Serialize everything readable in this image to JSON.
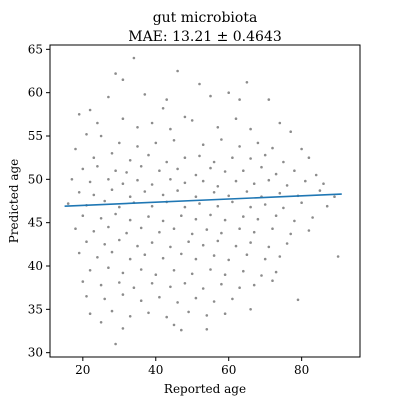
{
  "chart_data": {
    "type": "scatter",
    "title": "gut microbiota",
    "subtitle": "MAE: 13.21 ± 0.4643",
    "xlabel": "Reported age",
    "ylabel": "Predicted age",
    "xlim": [
      11,
      96
    ],
    "ylim": [
      29.5,
      65.5
    ],
    "xticks": [
      20,
      40,
      60,
      80
    ],
    "yticks": [
      30,
      35,
      40,
      45,
      50,
      55,
      60,
      65
    ],
    "grid": false,
    "legend": "none",
    "point_color": "#8c8c8c",
    "line_color": "#1f77b4",
    "trend_line": {
      "x": [
        15,
        91
      ],
      "y": [
        46.9,
        48.3
      ]
    },
    "points": [
      [
        34,
        64
      ],
      [
        29,
        62.2
      ],
      [
        46,
        62.5
      ],
      [
        31,
        61.5
      ],
      [
        52,
        61
      ],
      [
        65,
        61.2
      ],
      [
        22,
        58
      ],
      [
        27,
        59.5
      ],
      [
        37,
        59.8
      ],
      [
        42,
        58.2
      ],
      [
        55,
        59.6
      ],
      [
        60,
        60
      ],
      [
        63,
        59.2
      ],
      [
        71,
        59.2
      ],
      [
        43,
        59.2
      ],
      [
        48,
        57.2
      ],
      [
        19,
        57.5
      ],
      [
        24,
        56.5
      ],
      [
        31,
        57
      ],
      [
        35,
        56
      ],
      [
        39,
        56.5
      ],
      [
        44,
        55.8
      ],
      [
        50,
        56.8
      ],
      [
        57,
        56
      ],
      [
        62,
        57
      ],
      [
        66,
        55.8
      ],
      [
        74,
        56.5
      ],
      [
        77,
        55.5
      ],
      [
        21,
        55.2
      ],
      [
        25,
        55
      ],
      [
        30,
        54.2
      ],
      [
        35,
        53.8
      ],
      [
        40,
        54.2
      ],
      [
        45,
        54.5
      ],
      [
        53,
        54
      ],
      [
        58,
        54.6
      ],
      [
        63,
        53.8
      ],
      [
        68,
        54.2
      ],
      [
        72,
        53.6
      ],
      [
        80,
        53.5
      ],
      [
        18,
        53.5
      ],
      [
        23,
        52.5
      ],
      [
        28,
        53
      ],
      [
        33,
        52.2
      ],
      [
        38,
        52.8
      ],
      [
        43,
        52
      ],
      [
        48,
        52.5
      ],
      [
        52,
        52.7
      ],
      [
        56,
        52
      ],
      [
        61,
        52.5
      ],
      [
        66,
        52.4
      ],
      [
        70,
        52.8
      ],
      [
        75,
        52
      ],
      [
        82,
        52.5
      ],
      [
        20,
        51.2
      ],
      [
        24,
        51.5
      ],
      [
        29,
        51
      ],
      [
        32,
        50.8
      ],
      [
        36,
        51.5
      ],
      [
        41,
        51
      ],
      [
        46,
        51.2
      ],
      [
        51,
        50.5
      ],
      [
        55,
        51.3
      ],
      [
        59,
        50.9
      ],
      [
        64,
        51
      ],
      [
        69,
        51.4
      ],
      [
        73,
        50.6
      ],
      [
        78,
        51
      ],
      [
        84,
        50.5
      ],
      [
        17,
        50
      ],
      [
        22,
        49.7
      ],
      [
        27,
        50
      ],
      [
        31,
        49.5
      ],
      [
        35,
        49.9
      ],
      [
        39,
        49.4
      ],
      [
        44,
        50
      ],
      [
        48,
        49.6
      ],
      [
        53,
        49.8
      ],
      [
        57,
        49.2
      ],
      [
        62,
        49.8
      ],
      [
        67,
        49.5
      ],
      [
        71,
        49.9
      ],
      [
        76,
        49.3
      ],
      [
        81,
        49.8
      ],
      [
        86,
        49.5
      ],
      [
        19,
        48.5
      ],
      [
        23,
        48.2
      ],
      [
        28,
        48.8
      ],
      [
        33,
        48
      ],
      [
        37,
        48.6
      ],
      [
        42,
        48.2
      ],
      [
        46,
        48.7
      ],
      [
        51,
        48
      ],
      [
        56,
        48.5
      ],
      [
        60,
        48.1
      ],
      [
        65,
        48.6
      ],
      [
        69,
        48
      ],
      [
        74,
        48.4
      ],
      [
        79,
        48.1
      ],
      [
        85,
        48.7
      ],
      [
        89,
        48
      ],
      [
        16,
        47.2
      ],
      [
        21,
        47
      ],
      [
        26,
        47.5
      ],
      [
        30,
        46.8
      ],
      [
        34,
        47.3
      ],
      [
        39,
        46.9
      ],
      [
        43,
        47.4
      ],
      [
        48,
        46.8
      ],
      [
        52,
        47.2
      ],
      [
        57,
        46.9
      ],
      [
        61,
        47.4
      ],
      [
        66,
        46.8
      ],
      [
        70,
        47.1
      ],
      [
        75,
        46.7
      ],
      [
        80,
        47.3
      ],
      [
        87,
        46.9
      ],
      [
        20,
        45.8
      ],
      [
        25,
        45.5
      ],
      [
        29,
        46
      ],
      [
        33,
        45.3
      ],
      [
        38,
        45.7
      ],
      [
        42,
        45.2
      ],
      [
        47,
        45.8
      ],
      [
        51,
        45.4
      ],
      [
        55,
        45.9
      ],
      [
        59,
        45.3
      ],
      [
        64,
        45.7
      ],
      [
        68,
        45.4
      ],
      [
        73,
        45.8
      ],
      [
        78,
        45.2
      ],
      [
        83,
        45.6
      ],
      [
        18,
        44.3
      ],
      [
        23,
        44
      ],
      [
        27,
        44.5
      ],
      [
        32,
        43.8
      ],
      [
        36,
        44.4
      ],
      [
        41,
        43.9
      ],
      [
        45,
        44.3
      ],
      [
        50,
        43.7
      ],
      [
        54,
        44.2
      ],
      [
        58,
        43.8
      ],
      [
        63,
        44.3
      ],
      [
        67,
        43.9
      ],
      [
        72,
        44.3
      ],
      [
        77,
        43.7
      ],
      [
        82,
        44.1
      ],
      [
        21,
        42.8
      ],
      [
        26,
        42.5
      ],
      [
        30,
        43
      ],
      [
        35,
        42.3
      ],
      [
        39,
        42.7
      ],
      [
        44,
        42.2
      ],
      [
        49,
        42.8
      ],
      [
        53,
        42.4
      ],
      [
        57,
        42.9
      ],
      [
        62,
        42.3
      ],
      [
        66,
        42.7
      ],
      [
        71,
        42.2
      ],
      [
        76,
        42.6
      ],
      [
        19,
        41.5
      ],
      [
        24,
        41
      ],
      [
        28,
        41.6
      ],
      [
        33,
        40.8
      ],
      [
        37,
        41.3
      ],
      [
        42,
        40.9
      ],
      [
        47,
        41.4
      ],
      [
        51,
        40.8
      ],
      [
        56,
        41.2
      ],
      [
        60,
        40.7
      ],
      [
        65,
        41.3
      ],
      [
        70,
        40.8
      ],
      [
        74,
        41.1
      ],
      [
        90,
        41.1
      ],
      [
        22,
        39.5
      ],
      [
        27,
        39.8
      ],
      [
        31,
        39.2
      ],
      [
        36,
        39.6
      ],
      [
        40,
        39
      ],
      [
        45,
        39.5
      ],
      [
        50,
        39.1
      ],
      [
        55,
        39.6
      ],
      [
        59,
        39
      ],
      [
        64,
        39.4
      ],
      [
        69,
        38.9
      ],
      [
        73,
        39.3
      ],
      [
        20,
        38.2
      ],
      [
        25,
        37.8
      ],
      [
        30,
        38.1
      ],
      [
        34,
        37.5
      ],
      [
        39,
        38
      ],
      [
        44,
        37.6
      ],
      [
        48,
        38
      ],
      [
        53,
        37.4
      ],
      [
        58,
        37.9
      ],
      [
        63,
        37.5
      ],
      [
        67,
        37.8
      ],
      [
        72,
        38.3
      ],
      [
        21,
        36.5
      ],
      [
        26,
        36.2
      ],
      [
        31,
        36.7
      ],
      [
        36,
        36
      ],
      [
        41,
        36.4
      ],
      [
        46,
        35.8
      ],
      [
        51,
        36.3
      ],
      [
        56,
        35.9
      ],
      [
        61,
        36.2
      ],
      [
        79,
        36.1
      ],
      [
        22,
        34.5
      ],
      [
        28,
        34.8
      ],
      [
        33,
        34.2
      ],
      [
        38,
        34.6
      ],
      [
        43,
        34.1
      ],
      [
        49,
        34.7
      ],
      [
        54,
        34.3
      ],
      [
        59,
        34.5
      ],
      [
        25,
        33.5
      ],
      [
        31,
        32.8
      ],
      [
        45,
        33.2
      ],
      [
        47,
        32.6
      ],
      [
        54,
        32.7
      ],
      [
        66,
        35
      ],
      [
        29,
        31
      ]
    ]
  }
}
